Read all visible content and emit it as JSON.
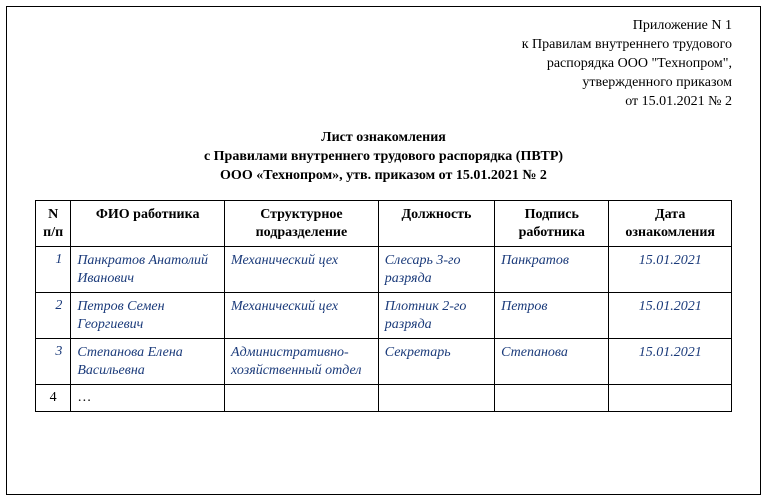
{
  "header": {
    "line1": "Приложение N 1",
    "line2": "к Правилам внутреннего трудового",
    "line3": "распорядка ООО \"Технопром\",",
    "line4": "утвержденного приказом",
    "line5": "от 15.01.2021 № 2"
  },
  "title": {
    "line1": "Лист ознакомления",
    "line2": "с Правилами внутреннего трудового распорядка (ПВТР)",
    "line3": "ООО «Технопром», утв. приказом от 15.01.2021 № 2"
  },
  "table": {
    "columns": {
      "num": "N п/п",
      "fio": "ФИО работника",
      "dept": "Структурное подразделение",
      "position": "Должность",
      "signature": "Подпись работника",
      "date": "Дата ознакомления"
    },
    "rows": [
      {
        "num": "1",
        "fio": "Панкратов Анатолий Иванович",
        "dept": "Механический цех",
        "position": "Слесарь 3-го разряда",
        "signature": "Панкратов",
        "date": "15.01.2021"
      },
      {
        "num": "2",
        "fio": "Петров Семен Георгиевич",
        "dept": "Механический цех",
        "position": "Плотник 2-го разряда",
        "signature": "Петров",
        "date": "15.01.2021"
      },
      {
        "num": "3",
        "fio": "Степанова Елена Васильевна",
        "dept": "Административно-хозяйственный отдел",
        "position": "Секретарь",
        "signature": "Степанова",
        "date": "15.01.2021"
      }
    ],
    "empty_row": {
      "num": "4",
      "placeholder": "…"
    }
  },
  "styling": {
    "data_text_color": "#1a3a7a",
    "border_color": "#000000",
    "background_color": "#ffffff",
    "font_family": "Times New Roman",
    "base_font_size_pt": 11
  }
}
